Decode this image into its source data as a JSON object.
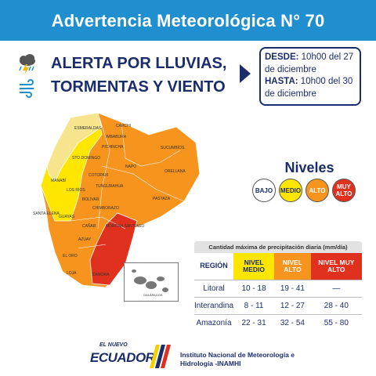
{
  "header": {
    "title": "Advertencia Meteorológica N° 70"
  },
  "alert": {
    "line1_prefix": "ALERTA POR ",
    "line1_strong": "LLUVIAS,",
    "line2": "TORMENTAS Y VIENTO",
    "icons": [
      "storm-cloud-icon",
      "wind-icon"
    ]
  },
  "dates": {
    "desde_label": "DESDE:",
    "desde_value": "10h00 del 27 de diciembre",
    "hasta_label": "HASTA:",
    "hasta_value": "10h00 del 30 de diciembre"
  },
  "levels": {
    "title": "Niveles",
    "items": [
      {
        "label": "BAJO",
        "color": "#ffffff"
      },
      {
        "label": "MEDIO",
        "color": "#ffe600"
      },
      {
        "label": "ALTO",
        "color": "#f7941d"
      },
      {
        "label": "MUY ALTO",
        "color": "#e0301e"
      }
    ]
  },
  "table": {
    "caption": "Cantidad máxima de precipitación diaria (mm/día)",
    "header": {
      "region": "REGIÓN",
      "medio": "NIVEL MEDIO",
      "alto": "NIVEL ALTO",
      "muyalto": "NIVEL MUY ALTO"
    },
    "rows": [
      {
        "region": "Litoral",
        "medio": "10 - 18",
        "alto": "19 - 41",
        "muyalto": "—"
      },
      {
        "region": "Interandina",
        "medio": "8 - 11",
        "alto": "12 - 27",
        "muyalto": "28 - 40"
      },
      {
        "region": "Amazonía",
        "medio": "22 - 31",
        "alto": "32 - 54",
        "muyalto": "55 - 80"
      }
    ]
  },
  "map": {
    "provinces": {
      "esmeraldas": "ESMERALDAS",
      "carchi": "CARCHI",
      "imbabura": "IMBABURA",
      "sucumbios": "SUCUMBÍOS",
      "pichincha": "PICHINCHA",
      "manabi": "MANABÍ",
      "sto_domingo": "STO.DOMINGO",
      "napo": "NAPO",
      "orellana": "ORELLANA",
      "cotopaxi": "COTOPAXI",
      "los_rios": "LOS RÍOS",
      "tungurahua": "TUNGURAHUA",
      "bolivar": "BOLÍVAR",
      "pastaza": "PASTAZA",
      "chimborazo": "CHIMBORAZO",
      "santa_elena": "SANTA ELENA",
      "guayas": "GUAYAS",
      "canar": "CAÑAR",
      "morona": "MORONA SANTIAGO",
      "azuay": "AZUAY",
      "el_oro": "EL ORO",
      "loja": "LOJA",
      "zamora": "ZAMORA",
      "galapagos": "GALÁPAGOS"
    }
  },
  "footer": {
    "logo_small": "EL NUEVO",
    "logo_main": "ECUADOR",
    "institute_line1": "Instituto Nacional de Meteorología e",
    "institute_line2": "Hidrología -INAMHI"
  },
  "colors": {
    "header_blue": "#1f8fd0",
    "navy": "#1b2c6b",
    "medio": "#ffe600",
    "alto": "#f7941d",
    "muy_alto": "#e0301e",
    "light_yellow": "#f6e58d"
  }
}
